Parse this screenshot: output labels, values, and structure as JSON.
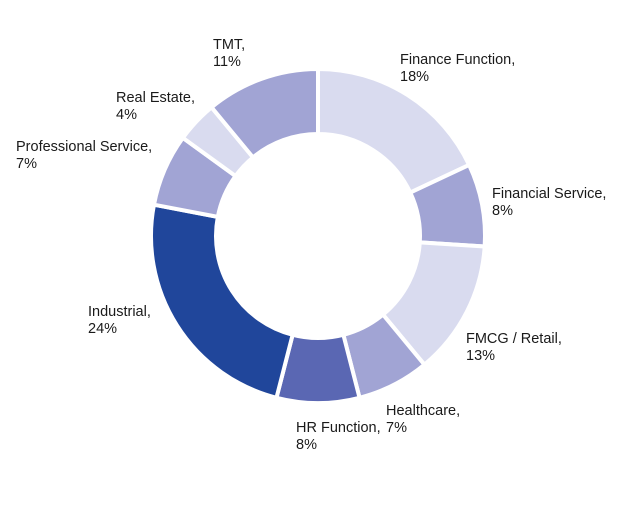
{
  "chart_data": {
    "type": "pie",
    "subtype": "donut",
    "title": "",
    "slices": [
      {
        "name": "Finance Function",
        "value": 18,
        "value_label": "18%",
        "color": "#d9dbef"
      },
      {
        "name": "Financial Service",
        "value": 8,
        "value_label": "8%",
        "color": "#a1a4d4"
      },
      {
        "name": "FMCG / Retail",
        "value": 13,
        "value_label": "13%",
        "color": "#d9dbef"
      },
      {
        "name": "Healthcare",
        "value": 7,
        "value_label": "7%",
        "color": "#a1a4d4"
      },
      {
        "name": "HR Function",
        "value": 8,
        "value_label": "8%",
        "color": "#5a67b3"
      },
      {
        "name": "Industrial",
        "value": 24,
        "value_label": "24%",
        "color": "#20469b"
      },
      {
        "name": "Professional Service",
        "value": 7,
        "value_label": "7%",
        "color": "#a1a4d4"
      },
      {
        "name": "Real Estate",
        "value": 4,
        "value_label": "4%",
        "color": "#d9dbef"
      },
      {
        "name": "TMT",
        "value": 11,
        "value_label": "11%",
        "color": "#a1a4d4"
      }
    ],
    "legend": false
  }
}
